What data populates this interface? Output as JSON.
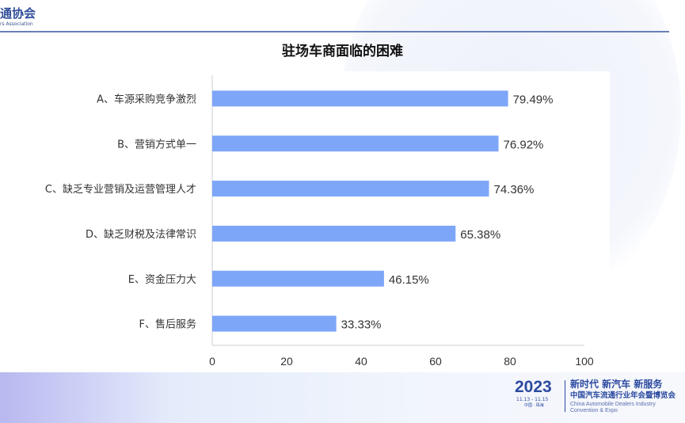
{
  "header": {
    "logo_text": "通协会",
    "logo_sub": "rs Association"
  },
  "footer": {
    "year": "2023",
    "dates": "11.13 - 11.15",
    "place": "中国 · 珠海",
    "slogan": "新时代 新汽车 新服务",
    "event_cn": "中国汽车流通行业年会暨博览会",
    "event_en": "China Automobile Dealers Industry Convention & Expo"
  },
  "chart_data": {
    "type": "bar",
    "orientation": "horizontal",
    "title": "驻场车商面临的困难",
    "categories": [
      "A、车源采购竞争激烈",
      "B、营销方式单一",
      "C、缺乏专业营销及运营管理人才",
      "D、缺乏财税及法律常识",
      "E、资金压力大",
      "F、售后服务"
    ],
    "values": [
      79.49,
      76.92,
      74.36,
      65.38,
      46.15,
      33.33
    ],
    "data_labels": [
      "79.49%",
      "76.92%",
      "74.36%",
      "65.38%",
      "46.15%",
      "33.33%"
    ],
    "xlim": [
      0,
      100
    ],
    "xticks": [
      "0",
      "20",
      "40",
      "60",
      "80",
      "100"
    ],
    "grid": false,
    "bar_color": "#7ea6f8"
  }
}
